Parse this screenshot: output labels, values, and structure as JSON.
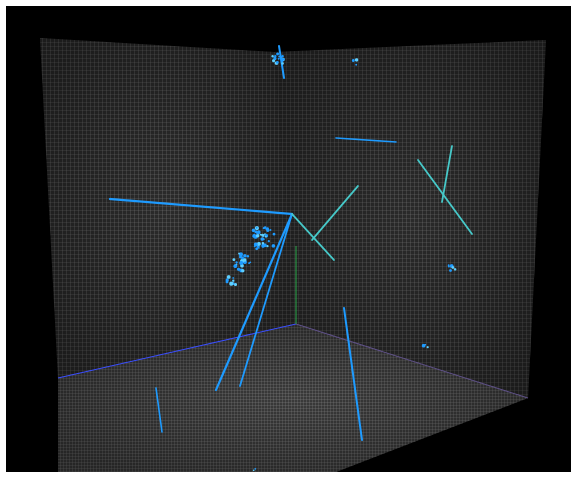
{
  "scene": {
    "background_color": "#000000",
    "grid_color": "#8a8a8a",
    "panel_color": "#3a3a3a",
    "track_color": "#1e9bff",
    "track_highlight_color": "#5fd0ff",
    "track_alt_color": "#46c9c9",
    "axis_x_color": "#3b4fff",
    "axis_y_color": "#2aa84a",
    "axis_z_color": "#6b5a9e"
  }
}
